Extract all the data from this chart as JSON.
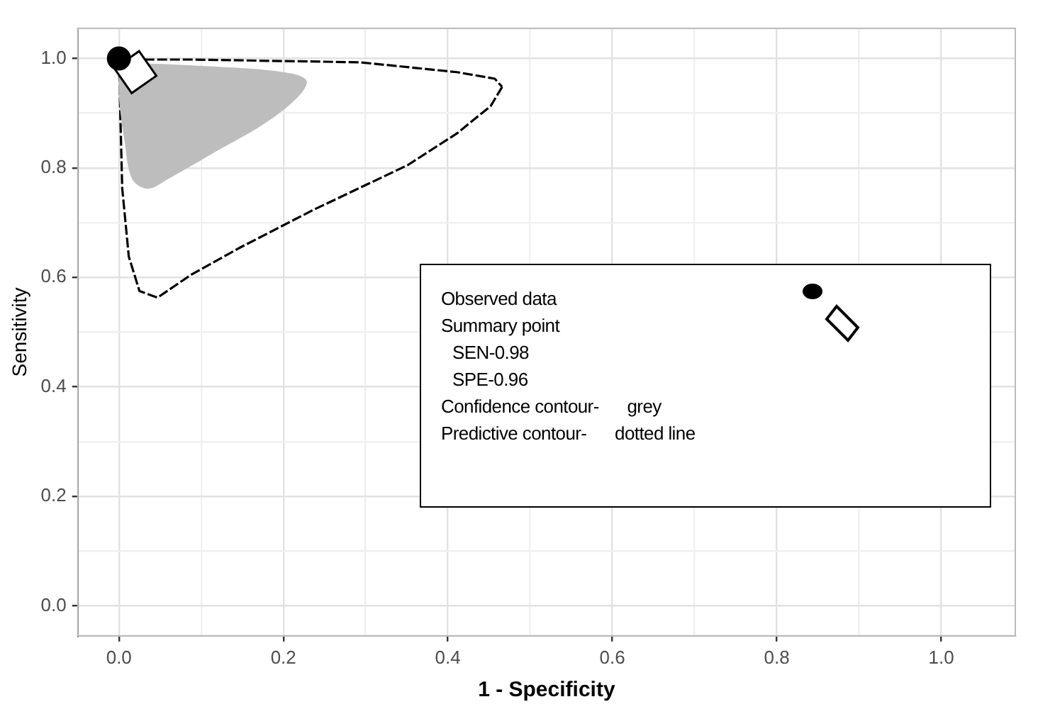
{
  "chart_data": {
    "type": "scatter",
    "xlabel": "1 - Specificity",
    "ylabel": "Sensitivity",
    "xlim": [
      -0.05,
      1.09
    ],
    "ylim": [
      -0.055,
      1.055
    ],
    "xticks": [
      {
        "value": 0,
        "label": "0.0"
      },
      {
        "value": 0.1,
        "label": null
      },
      {
        "value": 0.2,
        "label": "0.2"
      },
      {
        "value": 0.3,
        "label": null
      },
      {
        "value": 0.4,
        "label": "0.4"
      },
      {
        "value": 0.5,
        "label": null
      },
      {
        "value": 0.6,
        "label": "0.6"
      },
      {
        "value": 0.7,
        "label": null
      },
      {
        "value": 0.8,
        "label": "0.8"
      },
      {
        "value": 0.9,
        "label": null
      },
      {
        "value": 1,
        "label": "1.0"
      }
    ],
    "yticks": [
      {
        "value": 0,
        "label": "0.0"
      },
      {
        "value": 0.1,
        "label": null
      },
      {
        "value": 0.2,
        "label": "0.2"
      },
      {
        "value": 0.3,
        "label": null
      },
      {
        "value": 0.4,
        "label": "0.4"
      },
      {
        "value": 0.5,
        "label": null
      },
      {
        "value": 0.6,
        "label": "0.6"
      },
      {
        "value": 0.7,
        "label": null
      },
      {
        "value": 0.8,
        "label": "0.8"
      },
      {
        "value": 0.9,
        "label": null
      },
      {
        "value": 1,
        "label": "1.0"
      }
    ],
    "grid": true,
    "series": [
      {
        "type": "area",
        "color": "#bdbdbd",
        "x": [
          0,
          0.118,
          0.2,
          0.228,
          0.218,
          0.176,
          0.118,
          0.06,
          0.035,
          0.016,
          0.007,
          0,
          0
        ],
        "values": [
          0.993,
          0.985,
          0.975,
          0.96,
          0.93,
          0.88,
          0.83,
          0.78,
          0.762,
          0.78,
          0.848,
          0.93,
          0.993
        ]
      },
      {
        "type": "line",
        "color": "#000000",
        "line_style": "dashed",
        "marker": "none",
        "x": [
          0,
          0.088,
          0.293,
          0.411,
          0.457,
          0.466
        ],
        "values": [
          0.998,
          0.998,
          0.993,
          0.975,
          0.963,
          0.948
        ]
      },
      {
        "type": "line",
        "color": "#000000",
        "line_style": "dashed",
        "marker": "none",
        "x": [
          0.466,
          0.452,
          0.411,
          0.351,
          0.236,
          0.148,
          0.088,
          0.047,
          0.025,
          0.012,
          0.004,
          0
        ],
        "values": [
          0.948,
          0.913,
          0.863,
          0.805,
          0.723,
          0.655,
          0.605,
          0.563,
          0.575,
          0.638,
          0.763,
          0.998
        ]
      },
      {
        "type": "scatter",
        "color": "#000000",
        "marker": "circle",
        "x": [
          0
        ],
        "values": [
          1.0
        ]
      },
      {
        "type": "scatter",
        "color": "#000000",
        "marker": "diamond",
        "x": [
          0.02
        ],
        "values": [
          0.975
        ]
      }
    ],
    "annotations": [
      "Observed data",
      "Summary point",
      "SEN-0.98",
      "SPE-0.96",
      "Confidence contour-      grey",
      "Predictive contour-      dotted line"
    ]
  }
}
